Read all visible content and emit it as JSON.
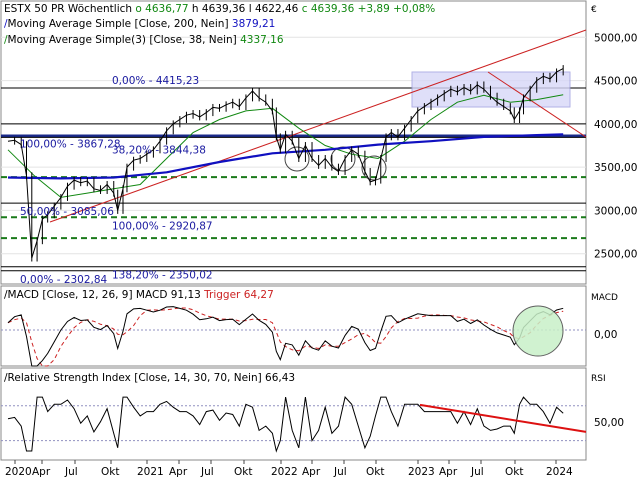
{
  "chart_data": {
    "type": "line",
    "currency_symbol": "€",
    "header": {
      "instrument": "ESTX 50 PR",
      "interval": "Wöchentlich",
      "open": "o 4636,77",
      "high": "h 4639,36",
      "low": "l 4622,46",
      "close": "c 4639,36",
      "change": "+3,89",
      "change_pct": "+0,08%"
    },
    "price_panel": {
      "ylim": [
        2150,
        5200
      ],
      "y_ticks": [
        {
          "value": 5000,
          "label": "5000,00"
        },
        {
          "value": 4500,
          "label": "4500,00"
        },
        {
          "value": 4000,
          "label": "4000,00"
        },
        {
          "value": 3500,
          "label": "3500,00"
        },
        {
          "value": 3000,
          "label": "3000,00"
        },
        {
          "value": 2500,
          "label": "2500,00"
        }
      ],
      "indicators": [
        {
          "name": "Moving Average Simple",
          "params": "[Close, 200, Nein]",
          "value": "3879,21",
          "color": "#1010c0"
        },
        {
          "name": "Moving Average Simple(3)",
          "params": "[Close, 38, Nein]",
          "value": "4337,16",
          "color": "#118811"
        }
      ],
      "fib_levels": [
        {
          "label": "0,00% - 4415,23",
          "value": 4415
        },
        {
          "label": "100,00% - 3867,28",
          "value": 3867
        },
        {
          "label": "38,20% - 3844,38",
          "value": 3844
        },
        {
          "label": "50,00% - 3085,06",
          "value": 3085
        },
        {
          "label": "100,00% - 2920,87",
          "value": 2921
        },
        {
          "label": "0,00% - 2302,84",
          "value": 2303
        },
        {
          "label": "138,20% - 2350,02",
          "value": 2350
        }
      ],
      "horizontal_lines": [
        {
          "value": 4415,
          "style": "solid",
          "color": "#000000"
        },
        {
          "value": 4000,
          "style": "solid",
          "color": "#000000"
        },
        {
          "value": 3860,
          "style": "thick",
          "color": "#1a2a8a"
        },
        {
          "value": 3844,
          "style": "solid",
          "color": "#000000"
        },
        {
          "value": 3385,
          "style": "dashed",
          "color": "#1a7a1a"
        },
        {
          "value": 3085,
          "style": "solid",
          "color": "#000000"
        },
        {
          "value": 2921,
          "style": "dashed",
          "color": "#1a7a1a"
        },
        {
          "value": 2680,
          "style": "dashed",
          "color": "#1a7a1a"
        },
        {
          "value": 2350,
          "style": "solid",
          "color": "#000000"
        },
        {
          "value": 2303,
          "style": "solid",
          "color": "#000000"
        }
      ],
      "price_series": [
        {
          "t": 0,
          "v": 3800
        },
        {
          "t": 0.5,
          "v": 3810
        },
        {
          "t": 1,
          "v": 3760
        },
        {
          "t": 1.4,
          "v": 3400
        },
        {
          "t": 1.8,
          "v": 2450
        },
        {
          "t": 2.2,
          "v": 2650
        },
        {
          "t": 2.6,
          "v": 2900
        },
        {
          "t": 3,
          "v": 2950
        },
        {
          "t": 3.5,
          "v": 3050
        },
        {
          "t": 4,
          "v": 3150
        },
        {
          "t": 4.5,
          "v": 3280
        },
        {
          "t": 5,
          "v": 3350
        },
        {
          "t": 5.5,
          "v": 3320
        },
        {
          "t": 6,
          "v": 3340
        },
        {
          "t": 6.5,
          "v": 3250
        },
        {
          "t": 7,
          "v": 3230
        },
        {
          "t": 7.5,
          "v": 3300
        },
        {
          "t": 8,
          "v": 3200
        },
        {
          "t": 8.3,
          "v": 3000
        },
        {
          "t": 8.7,
          "v": 3250
        },
        {
          "t": 9,
          "v": 3500
        },
        {
          "t": 9.5,
          "v": 3580
        },
        {
          "t": 10,
          "v": 3600
        },
        {
          "t": 10.5,
          "v": 3650
        },
        {
          "t": 11,
          "v": 3700
        },
        {
          "t": 11.5,
          "v": 3800
        },
        {
          "t": 12,
          "v": 3920
        },
        {
          "t": 12.5,
          "v": 4000
        },
        {
          "t": 13,
          "v": 4050
        },
        {
          "t": 13.5,
          "v": 4100
        },
        {
          "t": 14,
          "v": 4120
        },
        {
          "t": 14.5,
          "v": 4080
        },
        {
          "t": 15,
          "v": 4130
        },
        {
          "t": 15.5,
          "v": 4190
        },
        {
          "t": 16,
          "v": 4180
        },
        {
          "t": 16.5,
          "v": 4220
        },
        {
          "t": 17,
          "v": 4250
        },
        {
          "t": 17.5,
          "v": 4200
        },
        {
          "t": 18,
          "v": 4300
        },
        {
          "t": 18.5,
          "v": 4380
        },
        {
          "t": 19,
          "v": 4300
        },
        {
          "t": 19.5,
          "v": 4250
        },
        {
          "t": 20,
          "v": 4150
        },
        {
          "t": 20.3,
          "v": 3850
        },
        {
          "t": 20.6,
          "v": 3700
        },
        {
          "t": 21,
          "v": 3880
        },
        {
          "t": 21.5,
          "v": 3800
        },
        {
          "t": 22,
          "v": 3600
        },
        {
          "t": 22.5,
          "v": 3750
        },
        {
          "t": 23,
          "v": 3600
        },
        {
          "t": 23.5,
          "v": 3520
        },
        {
          "t": 24,
          "v": 3600
        },
        {
          "t": 24.5,
          "v": 3500
        },
        {
          "t": 25,
          "v": 3450
        },
        {
          "t": 25.5,
          "v": 3600
        },
        {
          "t": 26,
          "v": 3700
        },
        {
          "t": 26.5,
          "v": 3650
        },
        {
          "t": 27,
          "v": 3450
        },
        {
          "t": 27.4,
          "v": 3330
        },
        {
          "t": 27.8,
          "v": 3350
        },
        {
          "t": 28.2,
          "v": 3600
        },
        {
          "t": 28.6,
          "v": 3850
        },
        {
          "t": 29,
          "v": 3900
        },
        {
          "t": 29.5,
          "v": 3850
        },
        {
          "t": 30,
          "v": 3950
        },
        {
          "t": 30.5,
          "v": 4050
        },
        {
          "t": 31,
          "v": 4150
        },
        {
          "t": 31.5,
          "v": 4200
        },
        {
          "t": 32,
          "v": 4250
        },
        {
          "t": 32.5,
          "v": 4300
        },
        {
          "t": 33,
          "v": 4350
        },
        {
          "t": 33.5,
          "v": 4400
        },
        {
          "t": 34,
          "v": 4370
        },
        {
          "t": 34.5,
          "v": 4420
        },
        {
          "t": 35,
          "v": 4380
        },
        {
          "t": 35.5,
          "v": 4450
        },
        {
          "t": 36,
          "v": 4400
        },
        {
          "t": 36.5,
          "v": 4320
        },
        {
          "t": 37,
          "v": 4250
        },
        {
          "t": 37.5,
          "v": 4200
        },
        {
          "t": 38,
          "v": 4150
        },
        {
          "t": 38.3,
          "v": 4050
        },
        {
          "t": 38.7,
          "v": 4150
        },
        {
          "t": 39,
          "v": 4300
        },
        {
          "t": 39.5,
          "v": 4400
        },
        {
          "t": 40,
          "v": 4500
        },
        {
          "t": 40.5,
          "v": 4550
        },
        {
          "t": 41,
          "v": 4520
        },
        {
          "t": 41.5,
          "v": 4600
        },
        {
          "t": 42,
          "v": 4639
        }
      ],
      "ma200_series": [
        {
          "t": 0,
          "v": 3380
        },
        {
          "t": 4,
          "v": 3370
        },
        {
          "t": 8,
          "v": 3380
        },
        {
          "t": 12,
          "v": 3440
        },
        {
          "t": 16,
          "v": 3560
        },
        {
          "t": 20,
          "v": 3660
        },
        {
          "t": 24,
          "v": 3700
        },
        {
          "t": 28,
          "v": 3760
        },
        {
          "t": 32,
          "v": 3800
        },
        {
          "t": 36,
          "v": 3850
        },
        {
          "t": 40,
          "v": 3870
        },
        {
          "t": 42,
          "v": 3879
        }
      ],
      "ma38_series": [
        {
          "t": 0,
          "v": 3700
        },
        {
          "t": 2,
          "v": 3400
        },
        {
          "t": 4,
          "v": 3150
        },
        {
          "t": 6,
          "v": 3200
        },
        {
          "t": 8,
          "v": 3250
        },
        {
          "t": 10,
          "v": 3300
        },
        {
          "t": 12,
          "v": 3600
        },
        {
          "t": 14,
          "v": 3900
        },
        {
          "t": 16,
          "v": 4050
        },
        {
          "t": 18,
          "v": 4150
        },
        {
          "t": 20,
          "v": 4180
        },
        {
          "t": 22,
          "v": 3950
        },
        {
          "t": 24,
          "v": 3750
        },
        {
          "t": 26,
          "v": 3650
        },
        {
          "t": 28,
          "v": 3600
        },
        {
          "t": 30,
          "v": 3800
        },
        {
          "t": 32,
          "v": 4050
        },
        {
          "t": 34,
          "v": 4250
        },
        {
          "t": 36,
          "v": 4330
        },
        {
          "t": 38,
          "v": 4250
        },
        {
          "t": 40,
          "v": 4280
        },
        {
          "t": 42,
          "v": 4337
        }
      ]
    },
    "macd_panel": {
      "title": "MACD [Close, 12, 26, 9]",
      "value": "91,13",
      "trigger_label": "Trigger",
      "trigger_value": "64,27",
      "side_label": "MACD",
      "y_ticks": [
        {
          "value": 0,
          "label": "0,00"
        }
      ],
      "ylim": [
        -300,
        250
      ]
    },
    "rsi_panel": {
      "title": "Relative Strength Index [Close, 14, 30, 70, Nein]",
      "value": "66,43",
      "side_label": "RSI",
      "y_ticks": [
        {
          "value": 50,
          "label": "50,00"
        }
      ],
      "ylim": [
        10,
        95
      ],
      "levels": [
        30,
        70
      ]
    },
    "x_ticks": [
      "2020",
      "Apr",
      "Jul",
      "Okt",
      "2021",
      "Apr",
      "Jul",
      "Okt",
      "2022",
      "Apr",
      "Jul",
      "Okt",
      "2023",
      "Apr",
      "Jul",
      "Okt",
      "2024"
    ]
  }
}
